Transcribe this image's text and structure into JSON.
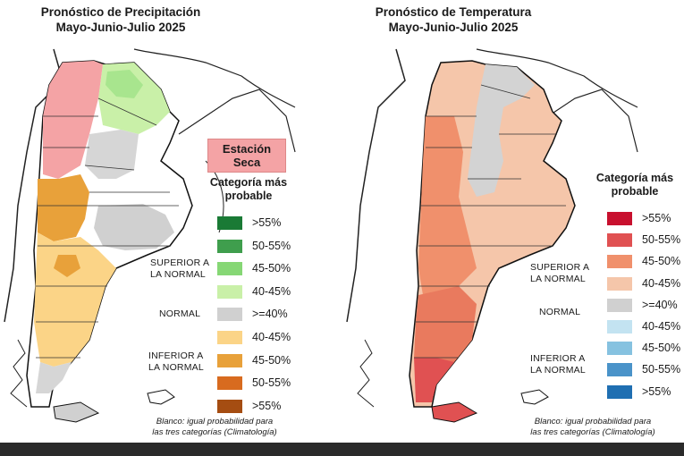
{
  "left": {
    "title_line1": "Pronóstico de Precipitación",
    "title_line2": "Mayo-Junio-Julio 2025",
    "dry_station_line1": "Estación",
    "dry_station_line2": "Seca",
    "legend_title_line1": "Categoría más",
    "legend_title_line2": "probable",
    "legend": [
      {
        "label": ">55%",
        "color": "#1a7a35"
      },
      {
        "label": "50-55%",
        "color": "#3f9e4d"
      },
      {
        "label": "45-50%",
        "color": "#86d775"
      },
      {
        "label": "40-45%",
        "color": "#c9f0a8"
      },
      {
        "label": ">=40%",
        "color": "#d0d0d0"
      },
      {
        "label": "40-45%",
        "color": "#fbd487"
      },
      {
        "label": "45-50%",
        "color": "#e8a13a"
      },
      {
        "label": "50-55%",
        "color": "#d86b1f"
      },
      {
        "label": ">55%",
        "color": "#a54d12"
      }
    ],
    "group_above_line1": "SUPERIOR A",
    "group_above_line2": "LA NORMAL",
    "group_normal": "NORMAL",
    "group_below_line1": "INFERIOR A",
    "group_below_line2": "LA NORMAL",
    "footnote_line1": "Blanco: igual probabilidad para",
    "footnote_line2": "las tres categorías (Climatología)"
  },
  "right": {
    "title_line1": "Pronóstico de Temperatura",
    "title_line2": "Mayo-Junio-Julio 2025",
    "legend_title_line1": "Categoría más",
    "legend_title_line2": "probable",
    "legend": [
      {
        "label": ">55%",
        "color": "#c8102e"
      },
      {
        "label": "50-55%",
        "color": "#e05152"
      },
      {
        "label": "45-50%",
        "color": "#f0906c"
      },
      {
        "label": "40-45%",
        "color": "#f5c6aa"
      },
      {
        "label": ">=40%",
        "color": "#d0d0d0"
      },
      {
        "label": "40-45%",
        "color": "#c3e3f1"
      },
      {
        "label": "45-50%",
        "color": "#86c2e0"
      },
      {
        "label": "50-55%",
        "color": "#4a93c9"
      },
      {
        "label": ">55%",
        "color": "#1f6fb2"
      }
    ],
    "group_above_line1": "SUPERIOR A",
    "group_above_line2": "LA NORMAL",
    "group_normal": "NORMAL",
    "group_below_line1": "INFERIOR A",
    "group_below_line2": "LA NORMAL",
    "footnote_line1": "Blanco: igual probabilidad para",
    "footnote_line2": "las tres categorías (Climatología)"
  }
}
